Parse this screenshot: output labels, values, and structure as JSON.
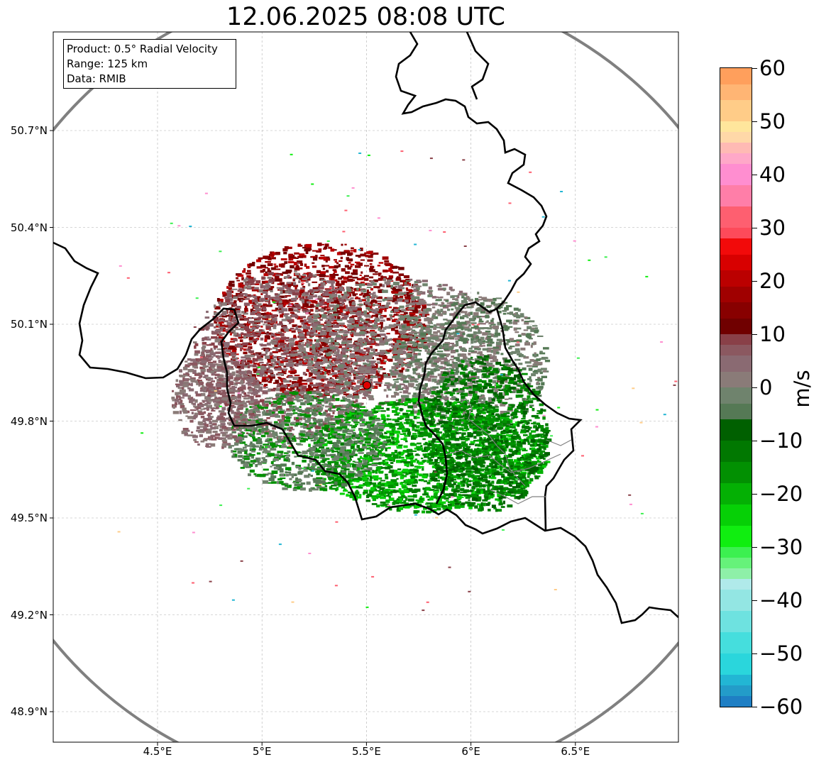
{
  "title": "12.06.2025 08:08 UTC",
  "info": {
    "product": "Product: 0.5° Radial Velocity",
    "range": "Range: 125 km",
    "data": "Data: RMIB"
  },
  "map": {
    "lon_range": [
      4.0,
      7.0
    ],
    "lat_range": [
      48.8,
      51.0
    ],
    "radar_site": {
      "lon": 5.505,
      "lat": 49.915
    },
    "range_km": 125,
    "grid": true,
    "lat_ticks": [
      {
        "value": 50.7,
        "label": "50.7°N"
      },
      {
        "value": 50.4,
        "label": "50.4°N"
      },
      {
        "value": 50.1,
        "label": "50.1°N"
      },
      {
        "value": 49.8,
        "label": "49.8°N"
      },
      {
        "value": 49.5,
        "label": "49.5°N"
      },
      {
        "value": 49.2,
        "label": "49.2°N"
      },
      {
        "value": 48.9,
        "label": "48.9°N"
      }
    ],
    "lon_ticks": [
      {
        "value": 4.5,
        "label": "4.5°E"
      },
      {
        "value": 5.0,
        "label": "5°E"
      },
      {
        "value": 5.5,
        "label": "5.5°E"
      },
      {
        "value": 6.0,
        "label": "6°E"
      },
      {
        "value": 6.5,
        "label": "6.5°E"
      }
    ],
    "colors": {
      "range_ring": "#808080",
      "border": "#000000",
      "admin_border": "#808080",
      "radar_marker": "#e00000",
      "gridline": "#b0b0b0"
    }
  },
  "colorbar": {
    "min": -60,
    "max": 60,
    "unit": "m/s",
    "ticks": [
      {
        "value": 60,
        "label": "60"
      },
      {
        "value": 50,
        "label": "50"
      },
      {
        "value": 40,
        "label": "40"
      },
      {
        "value": 30,
        "label": "30"
      },
      {
        "value": 20,
        "label": "20"
      },
      {
        "value": 10,
        "label": "10"
      },
      {
        "value": 0,
        "label": "0"
      },
      {
        "value": -10,
        "label": "−10"
      },
      {
        "value": -20,
        "label": "−20"
      },
      {
        "value": -30,
        "label": "−30"
      },
      {
        "value": -40,
        "label": "−40"
      },
      {
        "value": -50,
        "label": "−50"
      },
      {
        "value": -60,
        "label": "−60"
      }
    ],
    "stops": [
      {
        "from": -60,
        "to": -58,
        "color": "#1f7fc4"
      },
      {
        "from": -58,
        "to": -56,
        "color": "#239cc9"
      },
      {
        "from": -56,
        "to": -54,
        "color": "#22b6d4"
      },
      {
        "from": -54,
        "to": -50,
        "color": "#2ad6dc"
      },
      {
        "from": -50,
        "to": -46,
        "color": "#45dedd"
      },
      {
        "from": -46,
        "to": -42,
        "color": "#6ee2e0"
      },
      {
        "from": -42,
        "to": -38,
        "color": "#93e6e3"
      },
      {
        "from": -38,
        "to": -36,
        "color": "#b0eaea"
      },
      {
        "from": -36,
        "to": -34,
        "color": "#8ef0a8"
      },
      {
        "from": -34,
        "to": -32,
        "color": "#66f27a"
      },
      {
        "from": -32,
        "to": -30,
        "color": "#3cf050"
      },
      {
        "from": -30,
        "to": -26,
        "color": "#10ee10"
      },
      {
        "from": -26,
        "to": -22,
        "color": "#06d006"
      },
      {
        "from": -22,
        "to": -18,
        "color": "#04b004"
      },
      {
        "from": -18,
        "to": -14,
        "color": "#029002"
      },
      {
        "from": -14,
        "to": -10,
        "color": "#017801"
      },
      {
        "from": -10,
        "to": -6,
        "color": "#006000"
      },
      {
        "from": -6,
        "to": -3,
        "color": "#557955"
      },
      {
        "from": -3,
        "to": 0,
        "color": "#6f836d"
      },
      {
        "from": 0,
        "to": 3,
        "color": "#8a7b78"
      },
      {
        "from": 3,
        "to": 6,
        "color": "#8a6a72"
      },
      {
        "from": 6,
        "to": 8,
        "color": "#8b5860"
      },
      {
        "from": 8,
        "to": 10,
        "color": "#894048"
      },
      {
        "from": 10,
        "to": 13,
        "color": "#700000"
      },
      {
        "from": 13,
        "to": 16,
        "color": "#880000"
      },
      {
        "from": 16,
        "to": 19,
        "color": "#a00000"
      },
      {
        "from": 19,
        "to": 22,
        "color": "#bb0000"
      },
      {
        "from": 22,
        "to": 25,
        "color": "#d80000"
      },
      {
        "from": 25,
        "to": 28,
        "color": "#f20a0a"
      },
      {
        "from": 28,
        "to": 30,
        "color": "#fd4a5a"
      },
      {
        "from": 30,
        "to": 34,
        "color": "#fe5f70"
      },
      {
        "from": 34,
        "to": 38,
        "color": "#ff7ea8"
      },
      {
        "from": 38,
        "to": 42,
        "color": "#ff8ed0"
      },
      {
        "from": 42,
        "to": 44,
        "color": "#ffa8c8"
      },
      {
        "from": 44,
        "to": 46,
        "color": "#ffbab4"
      },
      {
        "from": 46,
        "to": 48,
        "color": "#ffd8a8"
      },
      {
        "from": 48,
        "to": 50,
        "color": "#ffe69c"
      },
      {
        "from": 50,
        "to": 54,
        "color": "#ffcc88"
      },
      {
        "from": 54,
        "to": 57,
        "color": "#ffb574"
      },
      {
        "from": 57,
        "to": 60,
        "color": "#ff9f5c"
      }
    ]
  }
}
